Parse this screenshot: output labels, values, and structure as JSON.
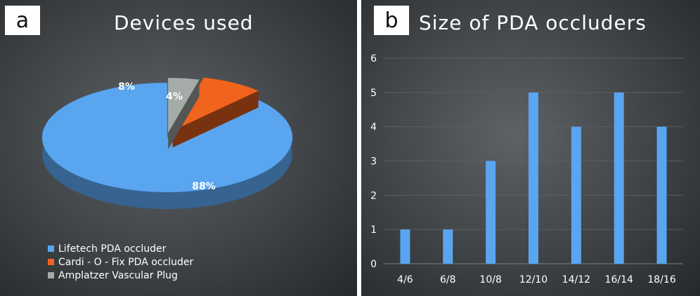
{
  "panels": {
    "a": {
      "tag": "a",
      "title": "Devices used"
    },
    "b": {
      "tag": "b",
      "title": "Size of PDA occluders"
    }
  },
  "legend": [
    {
      "label": "Lifetech PDA occluder",
      "color": "#5aa5f0"
    },
    {
      "label": "Cardi - O - Fix PDA occluder",
      "color": "#f0641e"
    },
    {
      "label": "Amplatzer Vascular Plug",
      "color": "#a5aca8"
    }
  ],
  "chart_data": [
    {
      "type": "pie",
      "title": "Devices used",
      "labels": [
        "Lifetech PDA occluder",
        "Cardi - O - Fix PDA occluder",
        "Amplatzer Vascular Plug"
      ],
      "values": [
        88,
        8,
        4
      ],
      "data_labels": [
        "88%",
        "8%",
        "4%"
      ],
      "colors": [
        "#5aa5f0",
        "#f0641e",
        "#a5aca8"
      ],
      "style": "3d-exploded",
      "legend": "bottom-left"
    },
    {
      "type": "bar",
      "title": "Size of PDA occluders",
      "categories": [
        "4/6",
        "6/8",
        "10/8",
        "12/10",
        "14/12",
        "16/14",
        "18/16"
      ],
      "values": [
        1,
        1,
        3,
        5,
        4,
        5,
        4
      ],
      "ylim": [
        0,
        6
      ],
      "yticks": [
        0,
        1,
        2,
        3,
        4,
        5,
        6
      ],
      "grid": true,
      "bar_color": "#5aa5f0"
    }
  ]
}
